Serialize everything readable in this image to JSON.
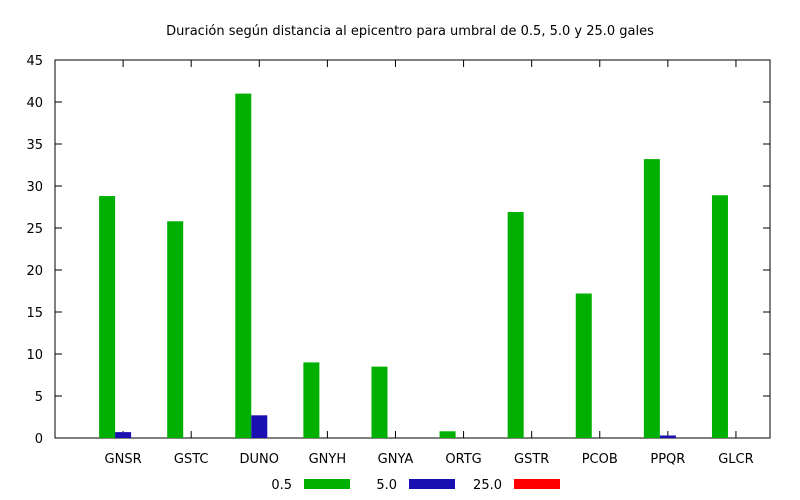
{
  "chart_data": {
    "type": "bar",
    "title": "Duración según distancia al epicentro para umbral de 0.5, 5.0 y 25.0 gales",
    "xlabel": "",
    "ylabel": "",
    "ylim": [
      0,
      45
    ],
    "yticks": [
      0,
      5,
      10,
      15,
      20,
      25,
      30,
      35,
      40,
      45
    ],
    "categories": [
      "GNSR",
      "GSTC",
      "DUNO",
      "GNYH",
      "GNYA",
      "ORTG",
      "GSTR",
      "PCOB",
      "PPQR",
      "GLCR"
    ],
    "series": [
      {
        "name": "0.5",
        "color": "#00b000",
        "values": [
          28.8,
          25.8,
          41.0,
          9.0,
          8.5,
          0.8,
          26.9,
          17.2,
          33.2,
          28.9
        ]
      },
      {
        "name": "5.0",
        "color": "#1a0fb0",
        "values": [
          0.7,
          0.0,
          2.7,
          0.0,
          0.0,
          0.0,
          0.0,
          0.0,
          0.3,
          0.0
        ]
      },
      {
        "name": "25.0",
        "color": "#ff0000",
        "values": [
          0,
          0,
          0,
          0,
          0,
          0,
          0,
          0,
          0,
          0
        ]
      }
    ],
    "legend_position": "bottom",
    "grid": false
  }
}
